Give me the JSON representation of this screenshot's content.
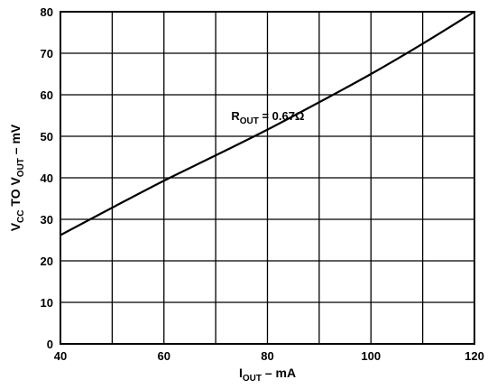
{
  "chart_data": {
    "type": "line",
    "title": "",
    "xlabel": {
      "main": "I",
      "sub": "OUT",
      "rest": " – mA"
    },
    "ylabel": {
      "v1": "V",
      "sub1": "CC",
      "mid": " TO V",
      "sub2": "OUT",
      "rest": " – mV"
    },
    "xlim": [
      40,
      120
    ],
    "ylim": [
      0,
      80
    ],
    "x_ticks": [
      "40",
      "60",
      "80",
      "100",
      "120"
    ],
    "y_ticks": [
      "0",
      "10",
      "20",
      "30",
      "40",
      "50",
      "60",
      "70",
      "80"
    ],
    "grid": true,
    "series": [
      {
        "x": [
          40,
          50,
          60,
          70,
          80,
          90,
          100,
          110,
          120
        ],
        "y": [
          26.2,
          32.8,
          39.3,
          45.4,
          51.6,
          58.2,
          65.0,
          72.3,
          80.0
        ]
      }
    ],
    "annotation": {
      "main": "R",
      "sub": "OUT",
      "rest": " = 0.67Ω",
      "x": 73,
      "y": 55
    }
  }
}
